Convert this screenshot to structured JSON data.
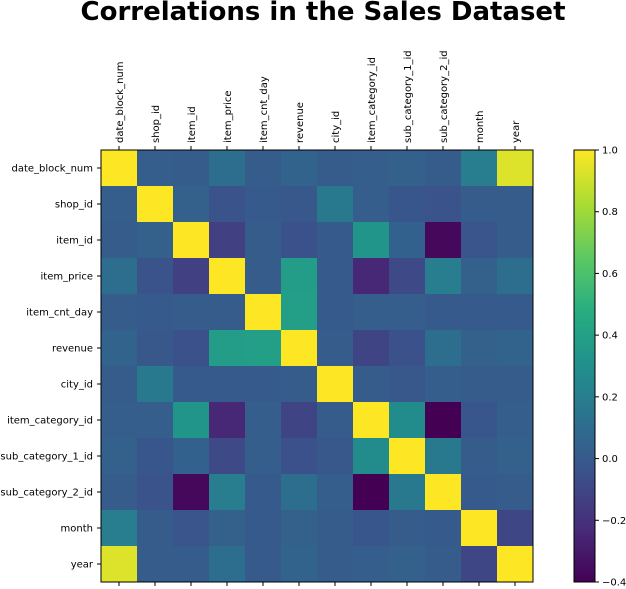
{
  "chart_data": {
    "type": "heatmap",
    "title": "Correlations in the Sales Dataset",
    "x_labels": [
      "date_block_num",
      "shop_id",
      "item_id",
      "item_price",
      "item_cnt_day",
      "revenue",
      "city_id",
      "item_category_id",
      "sub_category_1_id",
      "sub_category_2_id",
      "month",
      "year"
    ],
    "y_labels": [
      "date_block_num",
      "shop_id",
      "item_id",
      "item_price",
      "item_cnt_day",
      "revenue",
      "city_id",
      "item_category_id",
      "sub_category_1_id",
      "sub_category_2_id",
      "month",
      "year"
    ],
    "values": [
      [
        1.0,
        0.02,
        0.01,
        0.11,
        0.01,
        0.05,
        0.01,
        0.02,
        0.03,
        0.01,
        0.19,
        0.93
      ],
      [
        0.02,
        1.0,
        0.03,
        -0.04,
        0.0,
        -0.01,
        0.17,
        0.02,
        -0.02,
        -0.04,
        0.01,
        0.01
      ],
      [
        0.01,
        0.03,
        1.0,
        -0.13,
        0.01,
        -0.05,
        0.0,
        0.33,
        0.04,
        -0.37,
        -0.03,
        0.01
      ],
      [
        0.11,
        -0.04,
        -0.13,
        1.0,
        0.01,
        0.38,
        0.0,
        -0.24,
        -0.09,
        0.19,
        0.03,
        0.11
      ],
      [
        0.01,
        0.0,
        0.01,
        0.01,
        1.0,
        0.39,
        0.0,
        0.02,
        0.02,
        0.0,
        0.0,
        0.0
      ],
      [
        0.05,
        -0.01,
        -0.05,
        0.38,
        0.39,
        1.0,
        0.01,
        -0.11,
        -0.05,
        0.11,
        0.03,
        0.05
      ],
      [
        0.01,
        0.17,
        0.0,
        0.0,
        0.0,
        0.01,
        1.0,
        0.01,
        -0.01,
        0.02,
        0.01,
        0.01
      ],
      [
        0.02,
        0.02,
        0.33,
        -0.24,
        0.02,
        -0.11,
        0.01,
        1.0,
        0.28,
        -0.4,
        -0.02,
        0.02
      ],
      [
        0.03,
        -0.02,
        0.04,
        -0.09,
        0.02,
        -0.05,
        -0.01,
        0.28,
        1.0,
        0.17,
        0.01,
        0.03
      ],
      [
        0.01,
        -0.04,
        -0.37,
        0.19,
        0.0,
        0.11,
        0.02,
        -0.4,
        0.17,
        1.0,
        0.0,
        0.01
      ],
      [
        0.19,
        0.01,
        -0.03,
        0.03,
        0.0,
        0.03,
        0.01,
        -0.02,
        0.01,
        0.0,
        1.0,
        -0.1
      ],
      [
        0.93,
        0.01,
        0.01,
        0.11,
        0.0,
        0.05,
        0.01,
        0.02,
        0.03,
        0.01,
        -0.1,
        1.0
      ]
    ],
    "colormap": "viridis",
    "vmin": -0.4,
    "vmax": 1.0,
    "colorbar_ticks": [
      "1.0",
      "0.8",
      "0.6",
      "0.4",
      "0.2",
      "0.0",
      "−0.2",
      "−0.4"
    ],
    "colorbar_tick_values": [
      1.0,
      0.8,
      0.6,
      0.4,
      0.2,
      0.0,
      -0.2,
      -0.4
    ],
    "xlabel": "",
    "ylabel": "",
    "grid": false,
    "colorbar_position": "right"
  }
}
